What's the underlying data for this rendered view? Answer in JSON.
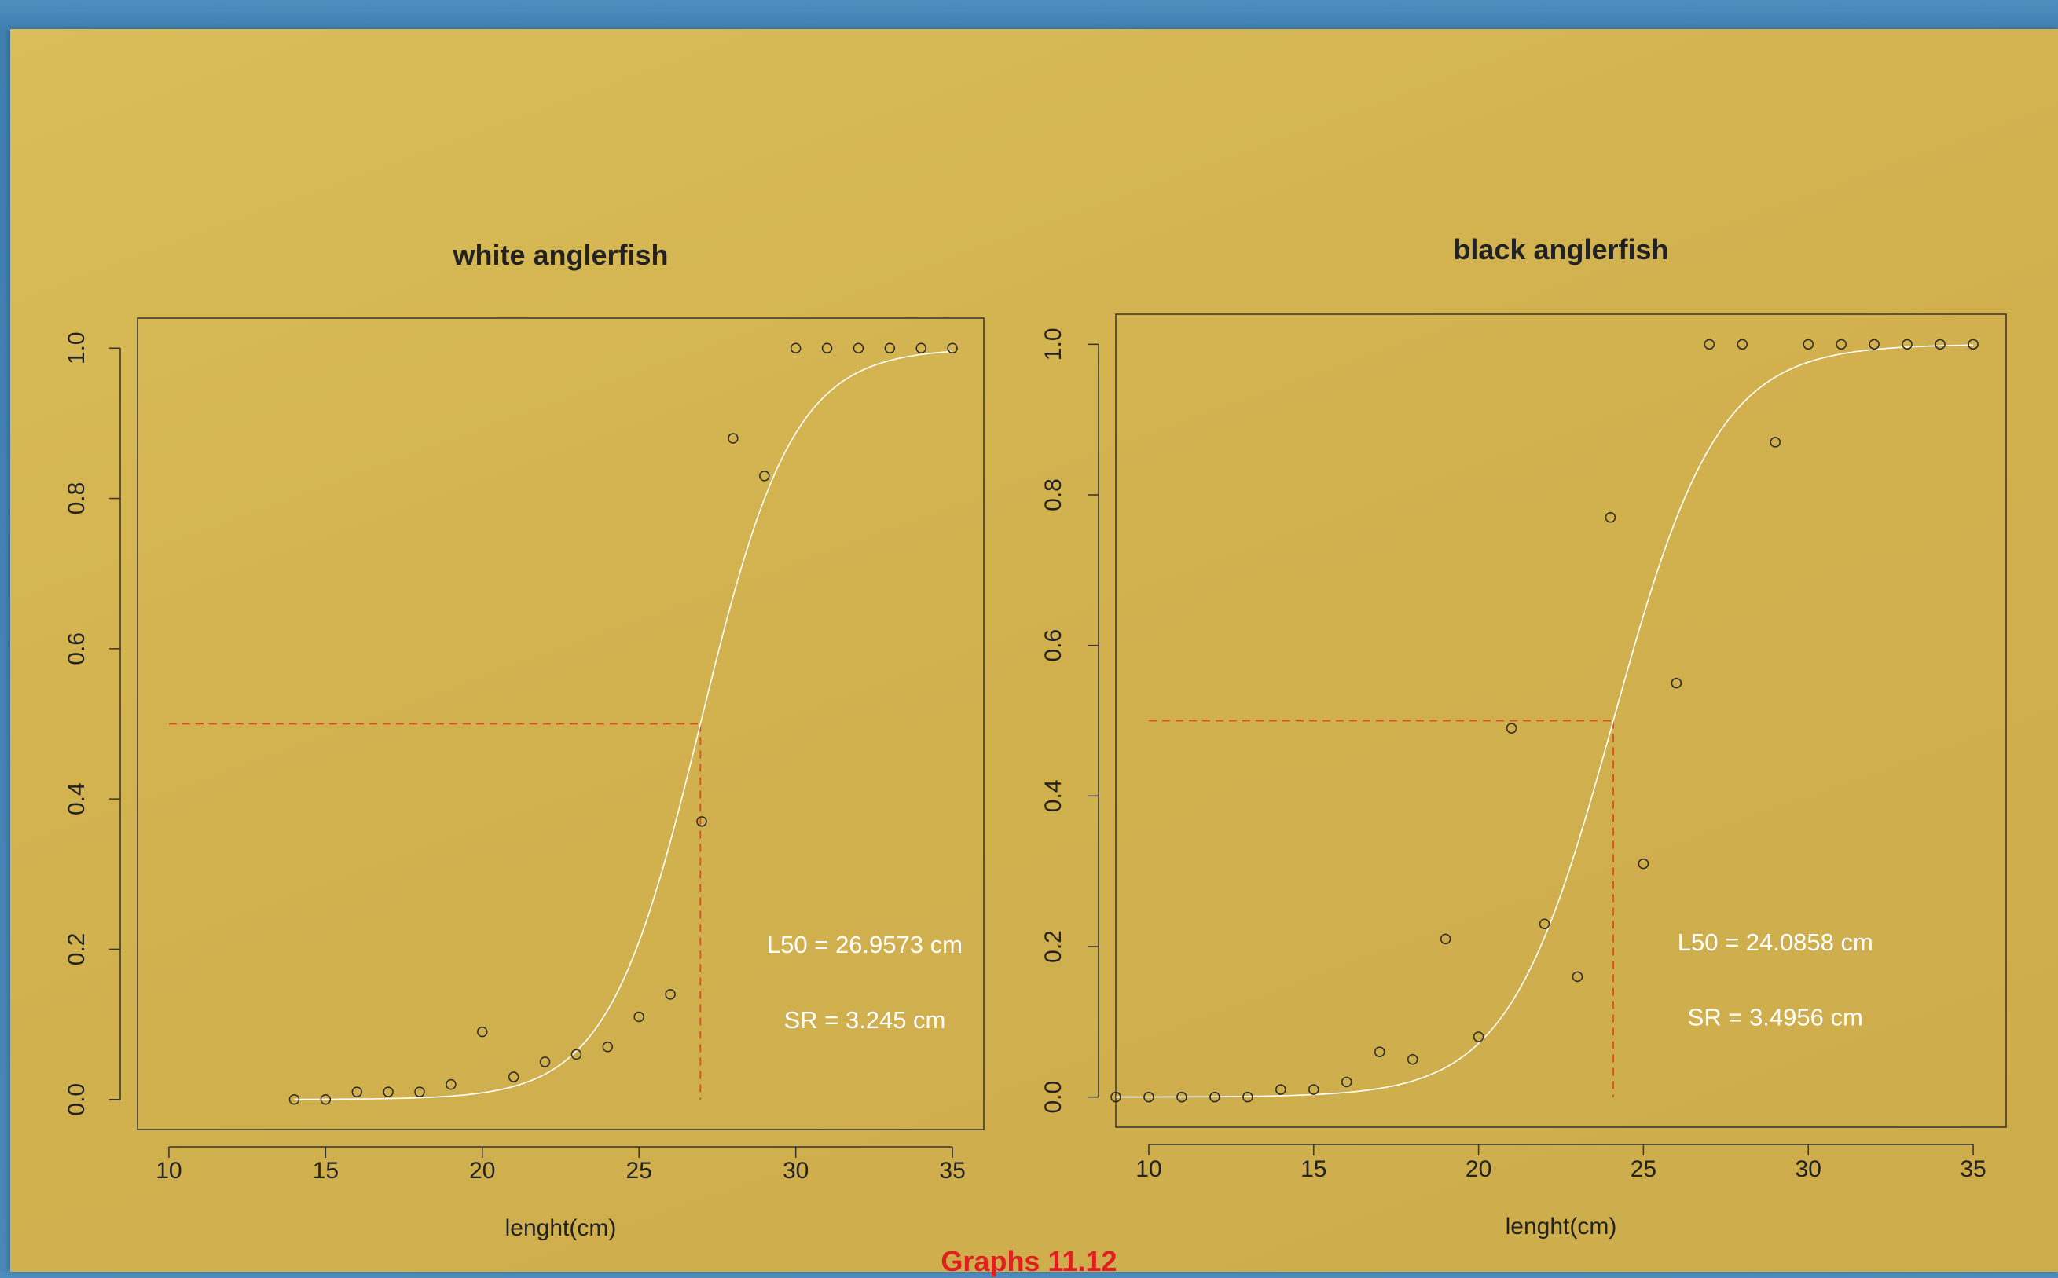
{
  "caption": "Graphs 11.12",
  "chart_data": [
    {
      "type": "scatter",
      "title": "white anglerfish",
      "xlabel": "lenght(cm)",
      "ylabel": "",
      "xlim": [
        9,
        36
      ],
      "ylim": [
        -0.04,
        1.04
      ],
      "xticks": [
        10,
        15,
        20,
        25,
        30,
        35
      ],
      "xtick_labels": [
        "10",
        "15",
        "20",
        "25",
        "30",
        "35"
      ],
      "yticks": [
        0,
        0.2,
        0.4,
        0.6,
        0.8,
        1.0
      ],
      "ytick_labels": [
        "0.0",
        "0.2",
        "0.4",
        "0.6",
        "0.8",
        "1.0"
      ],
      "points": {
        "x": [
          14,
          15,
          16,
          17,
          18,
          19,
          20,
          21,
          22,
          23,
          24,
          25,
          26,
          27,
          28,
          29,
          30,
          31,
          32,
          33,
          34,
          35
        ],
        "y": [
          0.0,
          0.0,
          0.01,
          0.01,
          0.01,
          0.02,
          0.09,
          0.03,
          0.05,
          0.06,
          0.07,
          0.11,
          0.14,
          0.37,
          0.88,
          0.83,
          1.0,
          1.0,
          1.0,
          1.0,
          1.0,
          1.0
        ]
      },
      "curve": {
        "type": "logistic",
        "l50": 26.9573,
        "sr": 3.245,
        "x_from": 14,
        "x_to": 35,
        "color": "#ffffff"
      },
      "reference_lines": {
        "y": 0.5,
        "x": 26.9573,
        "x_from": 10,
        "y_from": 0,
        "color": "#e0492a",
        "style": "dashed"
      },
      "annotations": [
        {
          "text": "L50 =  26.9573 cm",
          "x": 32.2,
          "y": 0.195
        },
        {
          "text": "SR =   3.245 cm",
          "x": 32.2,
          "y": 0.095
        }
      ]
    },
    {
      "type": "scatter",
      "title": "black anglerfish",
      "xlabel": "lenght(cm)",
      "ylabel": "",
      "xlim": [
        9,
        36
      ],
      "ylim": [
        -0.04,
        1.04
      ],
      "xticks": [
        10,
        15,
        20,
        25,
        30,
        35
      ],
      "xtick_labels": [
        "10",
        "15",
        "20",
        "25",
        "30",
        "35"
      ],
      "yticks": [
        0,
        0.2,
        0.4,
        0.6,
        0.8,
        1.0
      ],
      "ytick_labels": [
        "0.0",
        "0.2",
        "0.4",
        "0.6",
        "0.8",
        "1.0"
      ],
      "points": {
        "x": [
          9,
          10,
          11,
          12,
          13,
          14,
          15,
          16,
          17,
          18,
          19,
          20,
          21,
          22,
          23,
          24,
          25,
          26,
          27,
          28,
          29,
          30,
          31,
          32,
          33,
          34,
          35
        ],
        "y": [
          0.0,
          0.0,
          0.0,
          0.0,
          0.0,
          0.01,
          0.01,
          0.02,
          0.06,
          0.05,
          0.21,
          0.08,
          0.49,
          0.23,
          0.16,
          0.77,
          0.31,
          0.55,
          1.0,
          1.0,
          0.87,
          1.0,
          1.0,
          1.0,
          1.0,
          1.0,
          1.0
        ]
      },
      "curve": {
        "type": "logistic",
        "l50": 24.0858,
        "sr": 3.4956,
        "x_from": 9,
        "x_to": 35,
        "color": "#ffffff"
      },
      "reference_lines": {
        "y": 0.5,
        "x": 24.0858,
        "x_from": 10,
        "y_from": 0,
        "color": "#e0492a",
        "style": "dashed"
      },
      "annotations": [
        {
          "text": "L50 =  24.0858 cm",
          "x": 29.0,
          "y": 0.195
        },
        {
          "text": "SR =   3.4956 cm",
          "x": 29.0,
          "y": 0.095
        }
      ]
    }
  ]
}
